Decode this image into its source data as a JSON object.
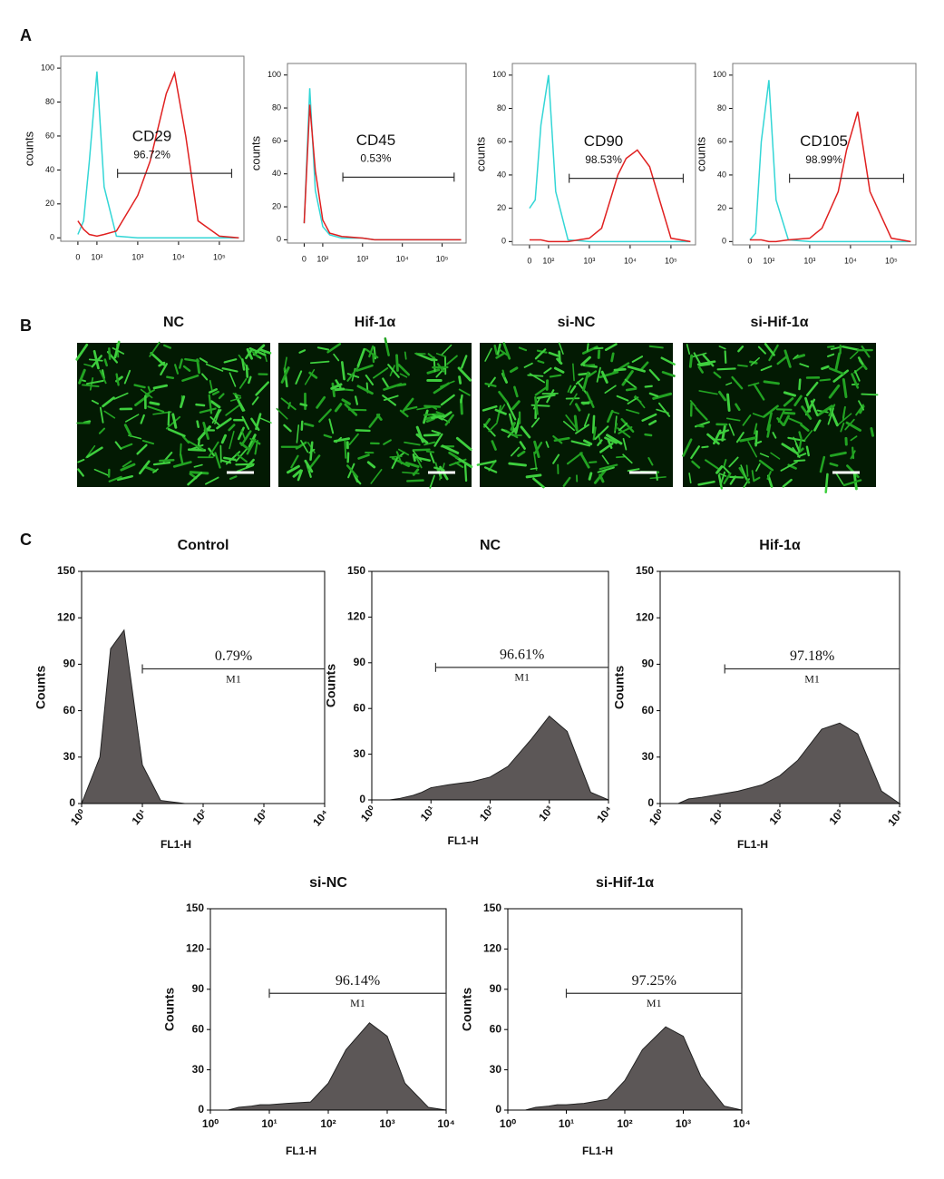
{
  "panel_labels": [
    "A",
    "B",
    "C"
  ],
  "images": [
    {
      "title": "NC"
    },
    {
      "title": "Hif-1α"
    },
    {
      "title": "si-NC"
    },
    {
      "title": "si-Hif-1α"
    }
  ],
  "chart_data": [
    {
      "type": "line",
      "ylabel": "counts",
      "ylim": [
        -2,
        107
      ],
      "yticks": [
        0,
        20,
        40,
        60,
        80,
        100
      ],
      "xscale": "biexponential",
      "xlim": [
        -90,
        400000
      ],
      "xticks": [
        0,
        {
          "value": 100,
          "label": "10²"
        },
        {
          "value": 1000,
          "label": "10³"
        },
        {
          "value": 10000,
          "label": "10⁴"
        },
        {
          "value": 100000,
          "label": "10⁵"
        }
      ],
      "x": [
        0,
        30,
        60,
        100,
        150,
        300,
        1000,
        2000,
        5000,
        8000,
        15000,
        30000,
        100000,
        300000
      ],
      "series": [
        {
          "color": "#33d6d6",
          "values": [
            2,
            10,
            45,
            98,
            30,
            1,
            0,
            0,
            0,
            0,
            0,
            0,
            0,
            0
          ]
        },
        {
          "color": "#e02020",
          "values": [
            10,
            5,
            2,
            1,
            2,
            4,
            25,
            45,
            85,
            97,
            60,
            10,
            1,
            0
          ]
        }
      ],
      "gate": {
        "range": [
          320,
          200000
        ],
        "y": 38,
        "name": "CD29",
        "label": "96.72%"
      }
    },
    {
      "type": "line",
      "ylabel": "counts",
      "ylim": [
        -2,
        107
      ],
      "yticks": [
        0,
        20,
        40,
        60,
        80,
        100
      ],
      "xscale": "biexponential",
      "xlim": [
        -90,
        400000
      ],
      "xticks": [
        0,
        {
          "value": 100,
          "label": "10²"
        },
        {
          "value": 1000,
          "label": "10³"
        },
        {
          "value": 10000,
          "label": "10⁴"
        },
        {
          "value": 100000,
          "label": "10⁵"
        }
      ],
      "x": [
        0,
        30,
        60,
        100,
        150,
        300,
        1000,
        2000,
        5000,
        8000,
        15000,
        30000,
        100000,
        300000
      ],
      "series": [
        {
          "color": "#33d6d6",
          "values": [
            10,
            92,
            30,
            8,
            3,
            1,
            1,
            0,
            0,
            0,
            0,
            0,
            0,
            0
          ]
        },
        {
          "color": "#e02020",
          "values": [
            10,
            82,
            42,
            12,
            4,
            2,
            1,
            0,
            0,
            0,
            0,
            0,
            0,
            0
          ]
        }
      ],
      "gate": {
        "range": [
          320,
          200000
        ],
        "y": 38,
        "name": "CD45",
        "label": "0.53%"
      }
    },
    {
      "type": "line",
      "ylabel": "counts",
      "ylim": [
        -2,
        107
      ],
      "yticks": [
        0,
        20,
        40,
        60,
        80,
        100
      ],
      "xscale": "biexponential",
      "xlim": [
        -90,
        400000
      ],
      "xticks": [
        0,
        {
          "value": 100,
          "label": "10²"
        },
        {
          "value": 1000,
          "label": "10³"
        },
        {
          "value": 10000,
          "label": "10⁴"
        },
        {
          "value": 100000,
          "label": "10⁵"
        }
      ],
      "x": [
        0,
        30,
        60,
        100,
        150,
        300,
        1000,
        2000,
        5000,
        8000,
        15000,
        30000,
        100000,
        300000
      ],
      "series": [
        {
          "color": "#33d6d6",
          "values": [
            20,
            25,
            70,
            100,
            30,
            1,
            0,
            0,
            0,
            0,
            0,
            0,
            0,
            0
          ]
        },
        {
          "color": "#e02020",
          "values": [
            1,
            1,
            1,
            0,
            0,
            0,
            2,
            8,
            40,
            50,
            55,
            45,
            2,
            0
          ]
        }
      ],
      "gate": {
        "range": [
          320,
          200000
        ],
        "y": 38,
        "name": "CD90",
        "label": "98.53%"
      }
    },
    {
      "type": "line",
      "ylabel": "counts",
      "ylim": [
        -2,
        107
      ],
      "yticks": [
        0,
        20,
        40,
        60,
        80,
        100
      ],
      "xscale": "biexponential",
      "xlim": [
        -90,
        400000
      ],
      "xticks": [
        0,
        {
          "value": 100,
          "label": "10²"
        },
        {
          "value": 1000,
          "label": "10³"
        },
        {
          "value": 10000,
          "label": "10⁴"
        },
        {
          "value": 100000,
          "label": "10⁵"
        }
      ],
      "x": [
        0,
        30,
        60,
        100,
        150,
        300,
        1000,
        2000,
        5000,
        8000,
        15000,
        30000,
        100000,
        300000
      ],
      "series": [
        {
          "color": "#33d6d6",
          "values": [
            1,
            5,
            60,
            97,
            25,
            1,
            0,
            0,
            0,
            0,
            0,
            0,
            0,
            0
          ]
        },
        {
          "color": "#e02020",
          "values": [
            1,
            1,
            1,
            0,
            0,
            1,
            2,
            8,
            30,
            55,
            78,
            30,
            2,
            0
          ]
        }
      ],
      "gate": {
        "range": [
          320,
          200000
        ],
        "y": 38,
        "name": "CD105",
        "label": "98.99%"
      }
    },
    {
      "type": "area",
      "title": "Control",
      "ylabel": "Counts",
      "xlabel": "FL1-H",
      "ylim": [
        0,
        150
      ],
      "yticks": [
        0,
        30,
        60,
        90,
        120,
        150
      ],
      "xscale": "log",
      "xlim": [
        1,
        10000
      ],
      "xticks": [
        {
          "value": 1,
          "label": "10⁰"
        },
        {
          "value": 10,
          "label": "10¹"
        },
        {
          "value": 100,
          "label": "10²"
        },
        {
          "value": 1000,
          "label": "10³"
        },
        {
          "value": 10000,
          "label": "10⁴"
        }
      ],
      "color": "#5c5757",
      "x": [
        1,
        2,
        3,
        5,
        7,
        10,
        20,
        50,
        100,
        200,
        500,
        1000,
        2000,
        5000,
        10000
      ],
      "values": [
        0,
        30,
        100,
        112,
        70,
        25,
        2,
        0,
        0,
        0,
        0,
        0,
        0,
        0,
        0
      ],
      "gate": {
        "range": [
          10,
          10000
        ],
        "y": 87,
        "label": "0.79%",
        "name": "M1"
      }
    },
    {
      "type": "area",
      "title": "NC",
      "ylabel": "Counts",
      "xlabel": "FL1-H",
      "ylim": [
        0,
        150
      ],
      "yticks": [
        0,
        30,
        60,
        90,
        120,
        150
      ],
      "xscale": "log",
      "xlim": [
        1,
        10000
      ],
      "xticks": [
        {
          "value": 1,
          "label": "10⁰"
        },
        {
          "value": 10,
          "label": "10¹"
        },
        {
          "value": 100,
          "label": "10²"
        },
        {
          "value": 1000,
          "label": "10³"
        },
        {
          "value": 10000,
          "label": "10⁴"
        }
      ],
      "color": "#5c5757",
      "x": [
        1,
        2,
        3,
        5,
        7,
        10,
        20,
        50,
        100,
        200,
        500,
        1000,
        2000,
        5000,
        10000
      ],
      "values": [
        0,
        0,
        1,
        3,
        5,
        8,
        10,
        12,
        15,
        22,
        40,
        55,
        45,
        5,
        0
      ],
      "gate": {
        "range": [
          12,
          10000
        ],
        "y": 87,
        "label": "96.61%",
        "name": "M1"
      }
    },
    {
      "type": "area",
      "title": "Hif-1α",
      "ylabel": "Counts",
      "xlabel": "FL1-H",
      "ylim": [
        0,
        150
      ],
      "yticks": [
        0,
        30,
        60,
        90,
        120,
        150
      ],
      "xscale": "log",
      "xlim": [
        1,
        10000
      ],
      "xticks": [
        {
          "value": 1,
          "label": "10⁰"
        },
        {
          "value": 10,
          "label": "10¹"
        },
        {
          "value": 100,
          "label": "10²"
        },
        {
          "value": 1000,
          "label": "10³"
        },
        {
          "value": 10000,
          "label": "10⁴"
        }
      ],
      "color": "#5c5757",
      "x": [
        1,
        2,
        3,
        5,
        7,
        10,
        20,
        50,
        100,
        200,
        500,
        1000,
        2000,
        5000,
        10000
      ],
      "values": [
        0,
        0,
        3,
        4,
        5,
        6,
        8,
        12,
        18,
        28,
        48,
        52,
        45,
        8,
        0
      ],
      "gate": {
        "range": [
          12,
          10000
        ],
        "y": 87,
        "label": "97.18%",
        "name": "M1"
      }
    },
    {
      "type": "area",
      "title": "si-NC",
      "ylabel": "Counts",
      "xlabel": "FL1-H",
      "ylim": [
        0,
        150
      ],
      "yticks": [
        0,
        30,
        60,
        90,
        120,
        150
      ],
      "xscale": "log",
      "xlim": [
        1,
        10000
      ],
      "xticks": [
        {
          "value": 1,
          "label": "10⁰"
        },
        {
          "value": 10,
          "label": "10¹"
        },
        {
          "value": 100,
          "label": "10²"
        },
        {
          "value": 1000,
          "label": "10³"
        },
        {
          "value": 10000,
          "label": "10⁴"
        }
      ],
      "color": "#5c5757",
      "x": [
        1,
        2,
        3,
        5,
        7,
        10,
        20,
        50,
        100,
        200,
        500,
        1000,
        2000,
        5000,
        10000
      ],
      "values": [
        0,
        0,
        2,
        3,
        4,
        4,
        5,
        6,
        20,
        45,
        65,
        55,
        20,
        2,
        0
      ],
      "gate": {
        "range": [
          10,
          10000
        ],
        "y": 87,
        "label": "96.14%",
        "name": "M1"
      }
    },
    {
      "type": "area",
      "title": "si-Hif-1α",
      "ylabel": "Counts",
      "xlabel": "FL1-H",
      "ylim": [
        0,
        150
      ],
      "yticks": [
        0,
        30,
        60,
        90,
        120,
        150
      ],
      "xscale": "log",
      "xlim": [
        1,
        10000
      ],
      "xticks": [
        {
          "value": 1,
          "label": "10⁰"
        },
        {
          "value": 10,
          "label": "10¹"
        },
        {
          "value": 100,
          "label": "10²"
        },
        {
          "value": 1000,
          "label": "10³"
        },
        {
          "value": 10000,
          "label": "10⁴"
        }
      ],
      "color": "#5c5757",
      "x": [
        1,
        2,
        3,
        5,
        7,
        10,
        20,
        50,
        100,
        200,
        500,
        1000,
        2000,
        5000,
        10000
      ],
      "values": [
        0,
        0,
        2,
        3,
        4,
        4,
        5,
        8,
        22,
        45,
        62,
        55,
        25,
        3,
        0
      ],
      "gate": {
        "range": [
          10,
          10000
        ],
        "y": 87,
        "label": "97.25%",
        "name": "M1"
      }
    }
  ]
}
